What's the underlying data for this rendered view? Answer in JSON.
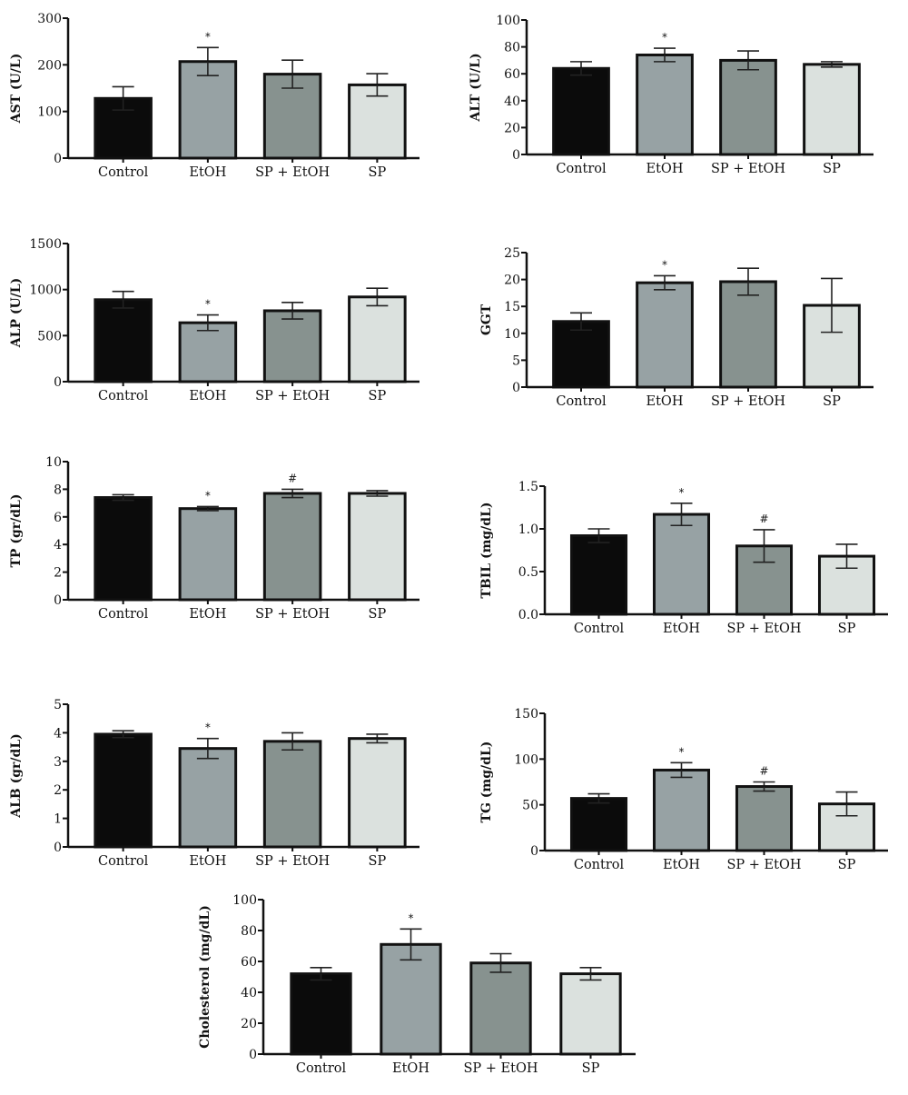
{
  "colors": {
    "Control": "#0b0b0b",
    "EtOH": "#97a2a4",
    "SP + EtOH": "#87928f",
    "SP": "#dbe1de",
    "axis": "#111111"
  },
  "chart_data": [
    {
      "type": "bar",
      "ylabel": "AST (U/L)",
      "ylim": [
        0,
        300
      ],
      "ytick_labels": [
        "0",
        "100",
        "200",
        "300"
      ],
      "categories": [
        "Control",
        "EtOH",
        "SP + EtOH",
        "SP"
      ],
      "values": [
        128,
        207,
        180,
        157
      ],
      "errors": [
        25,
        30,
        30,
        24
      ],
      "annotations": [
        "",
        "*",
        "",
        ""
      ]
    },
    {
      "type": "bar",
      "ylabel": "ALT (U/L)",
      "ylim": [
        0,
        100
      ],
      "ytick_labels": [
        "0",
        "20",
        "40",
        "60",
        "80",
        "100"
      ],
      "categories": [
        "Control",
        "EtOH",
        "SP + EtOH",
        "SP"
      ],
      "values": [
        64,
        74,
        70,
        67
      ],
      "errors": [
        5,
        5,
        7,
        2
      ],
      "annotations": [
        "",
        "*",
        "",
        ""
      ]
    },
    {
      "type": "bar",
      "ylabel": "ALP (U/L)",
      "ylim": [
        0,
        1500
      ],
      "ytick_labels": [
        "0",
        "500",
        "1000",
        "1500"
      ],
      "categories": [
        "Control",
        "EtOH",
        "SP + EtOH",
        "SP"
      ],
      "values": [
        890,
        640,
        770,
        920
      ],
      "errors": [
        90,
        85,
        90,
        95
      ],
      "annotations": [
        "",
        "*",
        "",
        ""
      ]
    },
    {
      "type": "bar",
      "ylabel": "GGT",
      "ylim": [
        0,
        25
      ],
      "ytick_labels": [
        "0",
        "5",
        "10",
        "15",
        "20",
        "25"
      ],
      "categories": [
        "Control",
        "EtOH",
        "SP + EtOH",
        "SP"
      ],
      "values": [
        12.2,
        19.4,
        19.6,
        15.2
      ],
      "errors": [
        1.6,
        1.3,
        2.5,
        5
      ],
      "annotations": [
        "",
        "*",
        "",
        ""
      ]
    },
    {
      "type": "bar",
      "ylabel": "TP (gr/dL)",
      "ylim": [
        0,
        10
      ],
      "ytick_labels": [
        "0",
        "2",
        "4",
        "6",
        "8",
        "10"
      ],
      "categories": [
        "Control",
        "EtOH",
        "SP + EtOH",
        "SP"
      ],
      "values": [
        7.4,
        6.6,
        7.7,
        7.7
      ],
      "errors": [
        0.2,
        0.15,
        0.3,
        0.2
      ],
      "annotations": [
        "",
        "*",
        "#",
        ""
      ]
    },
    {
      "type": "bar",
      "ylabel": "TBIL (mg/dL)",
      "ylim": [
        0,
        1.5
      ],
      "ytick_labels": [
        "0.0",
        "0.5",
        "1.0",
        "1.5"
      ],
      "categories": [
        "Control",
        "EtOH",
        "SP + EtOH",
        "SP"
      ],
      "values": [
        0.92,
        1.17,
        0.8,
        0.68
      ],
      "errors": [
        0.08,
        0.13,
        0.19,
        0.14
      ],
      "annotations": [
        "",
        "*",
        "#",
        ""
      ]
    },
    {
      "type": "bar",
      "ylabel": "ALB (gr/dL)",
      "ylim": [
        0,
        5
      ],
      "ytick_labels": [
        "0",
        "1",
        "2",
        "3",
        "4",
        "5"
      ],
      "categories": [
        "Control",
        "EtOH",
        "SP + EtOH",
        "SP"
      ],
      "values": [
        3.95,
        3.45,
        3.7,
        3.8
      ],
      "errors": [
        0.12,
        0.35,
        0.3,
        0.15
      ],
      "annotations": [
        "",
        "*",
        "",
        ""
      ]
    },
    {
      "type": "bar",
      "ylabel": "TG (mg/dL)",
      "ylim": [
        0,
        150
      ],
      "ytick_labels": [
        "0",
        "50",
        "100",
        "150"
      ],
      "categories": [
        "Control",
        "EtOH",
        "SP + EtOH",
        "SP"
      ],
      "values": [
        57,
        88,
        70,
        51
      ],
      "errors": [
        5,
        8,
        5,
        13
      ],
      "annotations": [
        "",
        "*",
        "#",
        ""
      ]
    },
    {
      "type": "bar",
      "ylabel": "Cholesterol (mg/dL)",
      "ylim": [
        0,
        100
      ],
      "ytick_labels": [
        "0",
        "20",
        "40",
        "60",
        "80",
        "100"
      ],
      "categories": [
        "Control",
        "EtOH",
        "SP + EtOH",
        "SP"
      ],
      "values": [
        52,
        71,
        59,
        52
      ],
      "errors": [
        4,
        10,
        6,
        4
      ],
      "annotations": [
        "",
        "*",
        "",
        ""
      ]
    }
  ]
}
